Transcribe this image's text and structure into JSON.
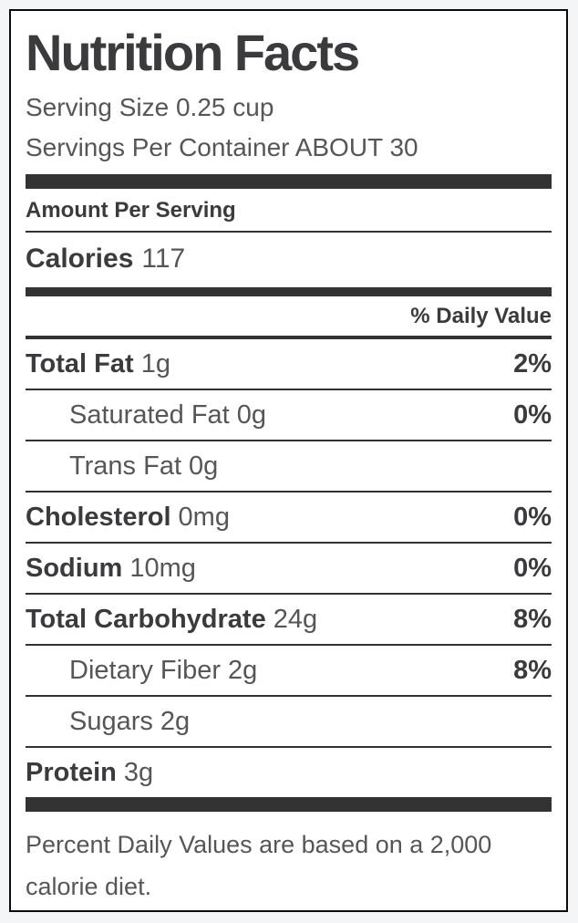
{
  "nutrition": {
    "title": "Nutrition Facts",
    "serving_size": "Serving Size 0.25 cup",
    "servings_per_container": "Servings Per Container ABOUT 30",
    "amount_per_serving": "Amount Per Serving",
    "calories_label": "Calories",
    "calories_value": "117",
    "daily_value_header": "% Daily Value",
    "rows": [
      {
        "name": "Total Fat",
        "amount": "1g",
        "dv": "2%"
      },
      {
        "name": "Saturated Fat",
        "amount": "0g",
        "dv": "0%"
      },
      {
        "name": "Trans Fat",
        "amount": "0g",
        "dv": ""
      },
      {
        "name": "Cholesterol",
        "amount": "0mg",
        "dv": "0%"
      },
      {
        "name": "Sodium",
        "amount": "10mg",
        "dv": "0%"
      },
      {
        "name": "Total Carbohydrate",
        "amount": "24g",
        "dv": "8%"
      },
      {
        "name": "Dietary Fiber",
        "amount": "2g",
        "dv": "8%"
      },
      {
        "name": "Sugars",
        "amount": "2g",
        "dv": ""
      },
      {
        "name": "Protein",
        "amount": "3g",
        "dv": ""
      }
    ],
    "footnote": "Percent Daily Values are based on a 2,000 calorie diet.",
    "colors": {
      "text_bold": "#3b3b3d",
      "text_regular": "#565658",
      "bar": "#333333",
      "border": "#0b0b0b",
      "label_background": "#ffffff",
      "page_background": "#f4f5f6"
    }
  }
}
